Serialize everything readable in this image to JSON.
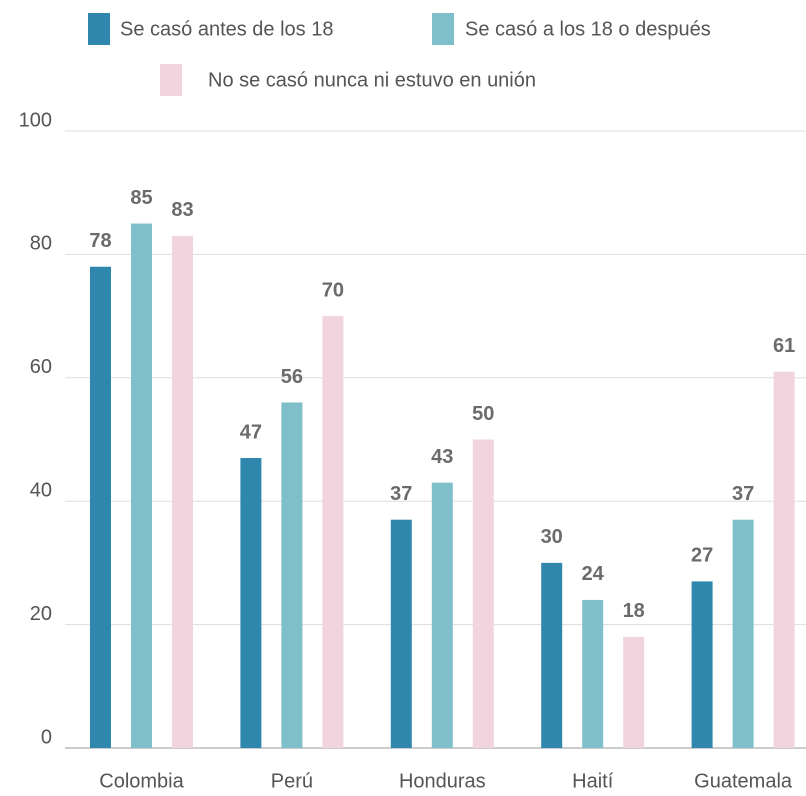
{
  "chart_data": {
    "type": "bar",
    "categories": [
      "Colombia",
      "Perú",
      "Honduras",
      "Haití",
      "Guatemala"
    ],
    "series": [
      {
        "name": "Se casó antes de los 18",
        "color": "#2f87ad",
        "values": [
          78,
          47,
          37,
          30,
          27
        ]
      },
      {
        "name": "Se casó a los 18 o después",
        "color": "#7fbfc9",
        "values": [
          85,
          56,
          43,
          24,
          37
        ]
      },
      {
        "name": "No se casó nunca ni estuvo en unión",
        "color": "#f2d4de",
        "values": [
          83,
          70,
          50,
          18,
          61
        ]
      }
    ],
    "ylim": [
      0,
      100
    ],
    "yticks": [
      0,
      20,
      40,
      60,
      80,
      100
    ],
    "grid": true
  }
}
